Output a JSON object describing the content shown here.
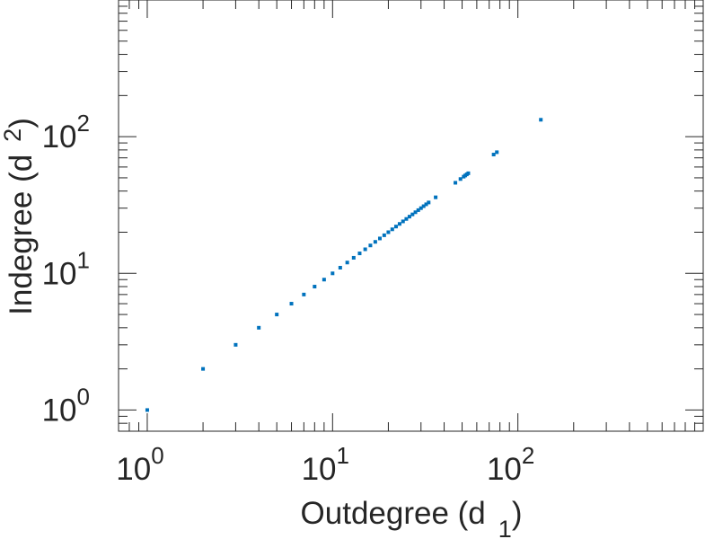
{
  "chart_data": {
    "type": "scatter",
    "title": "",
    "xlabel": {
      "text": "Outdegree (d",
      "subscript": "1",
      "suffix": ")"
    },
    "ylabel": {
      "text": "Indegree (d",
      "subscript": "2",
      "suffix": ")"
    },
    "xscale": "log",
    "yscale": "log",
    "xlim": [
      0.7,
      1000
    ],
    "ylim": [
      0.7,
      1000
    ],
    "grid": false,
    "box": true,
    "marker_color": "#0072BD",
    "axis_color": "#262626",
    "x_ticks": [
      {
        "base": "10",
        "exp": "0"
      },
      {
        "base": "10",
        "exp": "1"
      },
      {
        "base": "10",
        "exp": "2"
      }
    ],
    "y_ticks": [
      {
        "base": "10",
        "exp": "0"
      },
      {
        "base": "10",
        "exp": "1"
      },
      {
        "base": "10",
        "exp": "2"
      }
    ],
    "series": [
      {
        "x": [
          1,
          2,
          3,
          4,
          5,
          6,
          7,
          8,
          9,
          10,
          11,
          12,
          13,
          14,
          15,
          16,
          17,
          18,
          19,
          20,
          21,
          22,
          23,
          24,
          25,
          26,
          27,
          28,
          29,
          30,
          31,
          32,
          33,
          36,
          46,
          49,
          51,
          52,
          53,
          54,
          74,
          77,
          133
        ],
        "y": [
          1,
          2,
          3,
          4,
          5,
          6,
          7,
          8,
          9,
          10,
          11,
          12,
          13,
          14,
          15,
          16,
          17,
          18,
          19,
          20,
          21,
          22,
          23,
          24,
          25,
          26,
          27,
          28,
          29,
          30,
          31,
          32,
          33,
          36,
          46,
          49,
          51,
          52,
          53,
          54,
          74,
          77,
          133
        ]
      }
    ]
  }
}
